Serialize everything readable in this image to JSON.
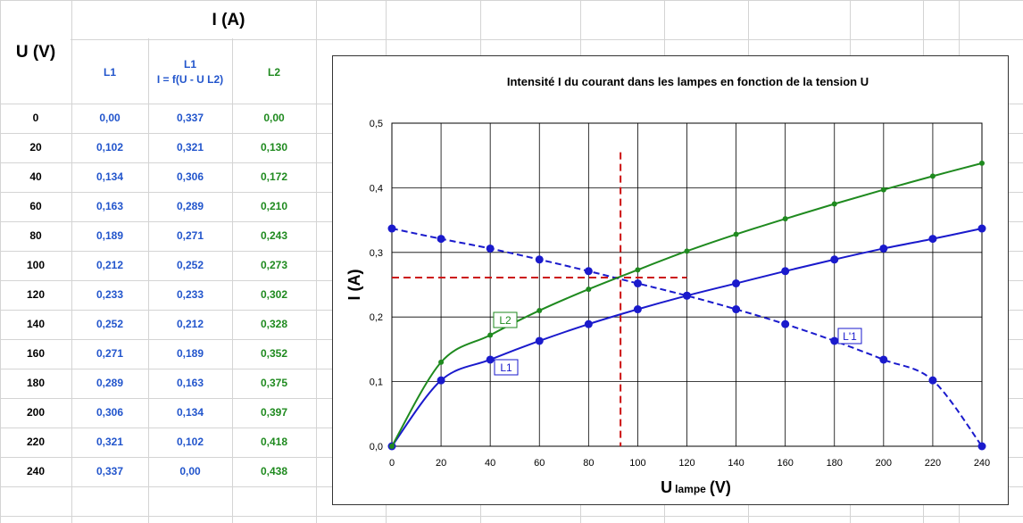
{
  "table": {
    "u_header": "U (V)",
    "i_header": "I (A)",
    "col_l1": "L1",
    "col_l1f_line1": "L1",
    "col_l1f_line2": "I = f(U - U L2)",
    "col_l2": "L2",
    "rows": [
      {
        "u": "0",
        "l1": "0,00",
        "l1f": "0,337",
        "l2": "0,00"
      },
      {
        "u": "20",
        "l1": "0,102",
        "l1f": "0,321",
        "l2": "0,130"
      },
      {
        "u": "40",
        "l1": "0,134",
        "l1f": "0,306",
        "l2": "0,172"
      },
      {
        "u": "60",
        "l1": "0,163",
        "l1f": "0,289",
        "l2": "0,210"
      },
      {
        "u": "80",
        "l1": "0,189",
        "l1f": "0,271",
        "l2": "0,243"
      },
      {
        "u": "100",
        "l1": "0,212",
        "l1f": "0,252",
        "l2": "0,273"
      },
      {
        "u": "120",
        "l1": "0,233",
        "l1f": "0,233",
        "l2": "0,302"
      },
      {
        "u": "140",
        "l1": "0,252",
        "l1f": "0,212",
        "l2": "0,328"
      },
      {
        "u": "160",
        "l1": "0,271",
        "l1f": "0,189",
        "l2": "0,352"
      },
      {
        "u": "180",
        "l1": "0,289",
        "l1f": "0,163",
        "l2": "0,375"
      },
      {
        "u": "200",
        "l1": "0,306",
        "l1f": "0,134",
        "l2": "0,397"
      },
      {
        "u": "220",
        "l1": "0,321",
        "l1f": "0,102",
        "l2": "0,418"
      },
      {
        "u": "240",
        "l1": "0,337",
        "l1f": "0,00",
        "l2": "0,438"
      }
    ]
  },
  "chart_data": {
    "type": "line",
    "title": "Intensité I du courant dans les lampes en fonction de la tension U",
    "xlabel_main": "U",
    "xlabel_sub": "lampe",
    "xlabel_unit": "(V)",
    "ylabel": "I (A)",
    "xlim": [
      0,
      240
    ],
    "ylim": [
      0,
      0.5
    ],
    "x_ticks": [
      0,
      20,
      40,
      60,
      80,
      100,
      120,
      140,
      160,
      180,
      200,
      220,
      240
    ],
    "y_ticks": [
      0,
      0.1,
      0.2,
      0.3,
      0.4,
      0.5
    ],
    "y_tick_labels": [
      "0,0",
      "0,1",
      "0,2",
      "0,3",
      "0,4",
      "0,5"
    ],
    "grid": true,
    "x": [
      0,
      20,
      40,
      60,
      80,
      100,
      120,
      140,
      160,
      180,
      200,
      220,
      240
    ],
    "series": [
      {
        "name": "L1",
        "color": "#1a1acc",
        "style": "solid",
        "values": [
          0,
          0.102,
          0.134,
          0.163,
          0.189,
          0.212,
          0.233,
          0.252,
          0.271,
          0.289,
          0.306,
          0.321,
          0.337
        ]
      },
      {
        "name": "L'1",
        "color": "#1a1acc",
        "style": "dashed",
        "values": [
          0.337,
          0.321,
          0.306,
          0.289,
          0.271,
          0.252,
          0.233,
          0.212,
          0.189,
          0.163,
          0.134,
          0.102,
          0
        ]
      },
      {
        "name": "L2",
        "color": "#1f8a1f",
        "style": "solid",
        "values": [
          0,
          0.13,
          0.172,
          0.21,
          0.243,
          0.273,
          0.302,
          0.328,
          0.352,
          0.375,
          0.397,
          0.418,
          0.438
        ]
      }
    ],
    "annotations": {
      "intersection_x": 93,
      "intersection_y": 0.261,
      "vline_top_y": 0.455,
      "hline_end_x": 120,
      "color": "#cc1111"
    }
  }
}
